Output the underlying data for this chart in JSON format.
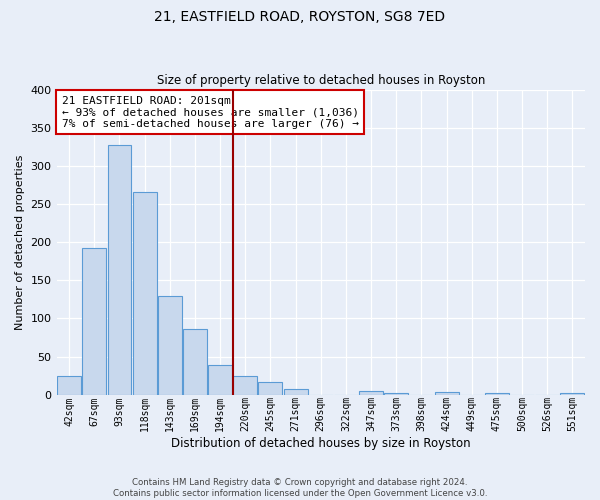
{
  "title": "21, EASTFIELD ROAD, ROYSTON, SG8 7ED",
  "subtitle": "Size of property relative to detached houses in Royston",
  "xlabel": "Distribution of detached houses by size in Royston",
  "ylabel": "Number of detached properties",
  "bar_labels": [
    "42sqm",
    "67sqm",
    "93sqm",
    "118sqm",
    "143sqm",
    "169sqm",
    "194sqm",
    "220sqm",
    "245sqm",
    "271sqm",
    "296sqm",
    "322sqm",
    "347sqm",
    "373sqm",
    "398sqm",
    "424sqm",
    "449sqm",
    "475sqm",
    "500sqm",
    "526sqm",
    "551sqm"
  ],
  "bar_values": [
    25,
    193,
    328,
    266,
    130,
    86,
    39,
    25,
    17,
    7,
    0,
    0,
    5,
    2,
    0,
    4,
    0,
    2,
    0,
    0,
    3
  ],
  "bar_color": "#c8d8ed",
  "bar_edge_color": "#5b9bd5",
  "ylim": [
    0,
    400
  ],
  "yticks": [
    0,
    50,
    100,
    150,
    200,
    250,
    300,
    350,
    400
  ],
  "vline_x": 6.5,
  "vline_color": "#990000",
  "annotation_title": "21 EASTFIELD ROAD: 201sqm",
  "annotation_line1": "← 93% of detached houses are smaller (1,036)",
  "annotation_line2": "7% of semi-detached houses are larger (76) →",
  "annotation_box_color": "#ffffff",
  "annotation_box_edge": "#cc0000",
  "footer_line1": "Contains HM Land Registry data © Crown copyright and database right 2024.",
  "footer_line2": "Contains public sector information licensed under the Open Government Licence v3.0.",
  "background_color": "#e8eef8",
  "plot_background": "#e8eef8",
  "grid_color": "#ffffff"
}
